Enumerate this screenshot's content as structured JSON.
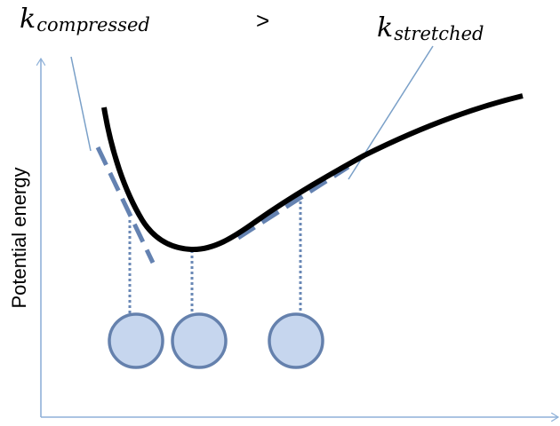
{
  "labels": {
    "k_left_main": "k",
    "k_left_sub": "compressed",
    "comparison": ">",
    "k_right_main": "k",
    "k_right_sub": "stretched",
    "y_axis": "Potential energy"
  },
  "colors": {
    "curve": "#000000",
    "tangent": "#6482b1",
    "axis": "#8fb1d8",
    "pointer": "#7aa0c8",
    "atom_fill": "#c6d6ee",
    "atom_stroke": "#6581ad",
    "dotted": "#6a88b6"
  },
  "atoms": [
    {
      "name": "atom-compressed"
    },
    {
      "name": "atom-equilibrium"
    },
    {
      "name": "atom-stretched"
    }
  ]
}
